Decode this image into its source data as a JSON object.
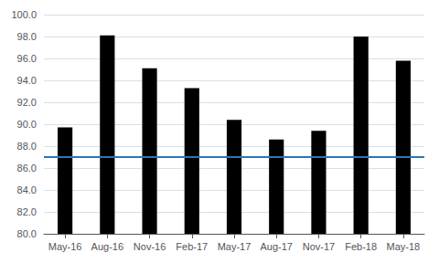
{
  "chart_data": {
    "type": "bar",
    "categories": [
      "May-16",
      "Aug-16",
      "Nov-16",
      "Feb-17",
      "May-17",
      "Aug-17",
      "Nov-17",
      "Feb-18",
      "May-18"
    ],
    "values": [
      89.7,
      98.1,
      95.1,
      93.3,
      90.4,
      88.6,
      89.4,
      98.0,
      95.8
    ],
    "color": "#000000",
    "reference_line": {
      "value": 87.0,
      "color": "#2E75B6"
    },
    "ylim": [
      80.0,
      100.0
    ],
    "yticks": [
      {
        "value": 80.0,
        "label": "80.0"
      },
      {
        "value": 82.0,
        "label": "82.0"
      },
      {
        "value": 84.0,
        "label": "84.0"
      },
      {
        "value": 86.0,
        "label": "86.0"
      },
      {
        "value": 88.0,
        "label": "88.0"
      },
      {
        "value": 90.0,
        "label": "90.0"
      },
      {
        "value": 92.0,
        "label": "92.0"
      },
      {
        "value": 94.0,
        "label": "94.0"
      },
      {
        "value": 96.0,
        "label": "96.0"
      },
      {
        "value": 98.0,
        "label": "98.0"
      },
      {
        "value": 100.0,
        "label": "100.0"
      }
    ],
    "grid": true
  }
}
